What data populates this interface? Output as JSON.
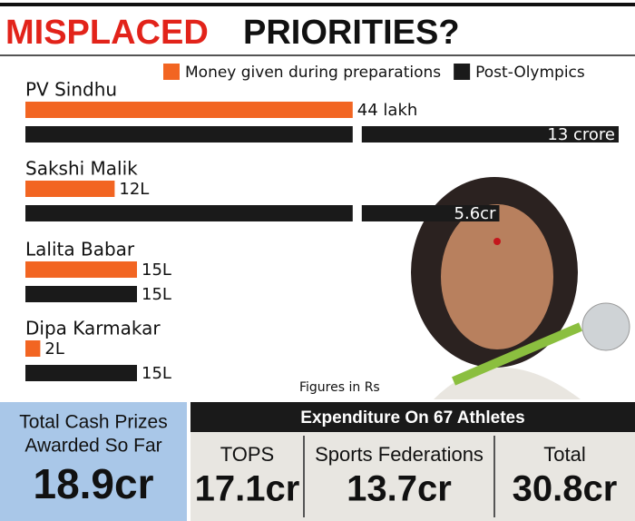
{
  "chart_data": {
    "type": "bar",
    "title": [
      "MISPLACED",
      "PRIORITIES?"
    ],
    "categories": [
      "PV Sindhu",
      "Sakshi Malik",
      "Lalita Babar",
      "Dipa Karmakar"
    ],
    "series": [
      {
        "name": "Money given during preparations",
        "color": "#f26522",
        "values": [
          44,
          12,
          15,
          2
        ],
        "value_labels": [
          "44 lakh",
          "12L",
          "15L",
          "2L"
        ]
      },
      {
        "name": "Post-Olympics",
        "color": "#1a1a1a",
        "values": [
          1300,
          560,
          15,
          15
        ],
        "value_labels": [
          "13 crore",
          "5.6cr",
          "15L",
          "15L"
        ]
      }
    ],
    "note": "Figures in Rs"
  },
  "summary": {
    "label": [
      "Total Cash Prizes",
      "Awarded So Far"
    ],
    "value": "18.9cr"
  },
  "expenditure": {
    "title": "Expenditure On 67 Athletes",
    "items": [
      {
        "label": "TOPS",
        "value": "17.1cr"
      },
      {
        "label": "Sports Federations",
        "value": "13.7cr"
      },
      {
        "label": "Total",
        "value": "30.8cr"
      }
    ]
  }
}
